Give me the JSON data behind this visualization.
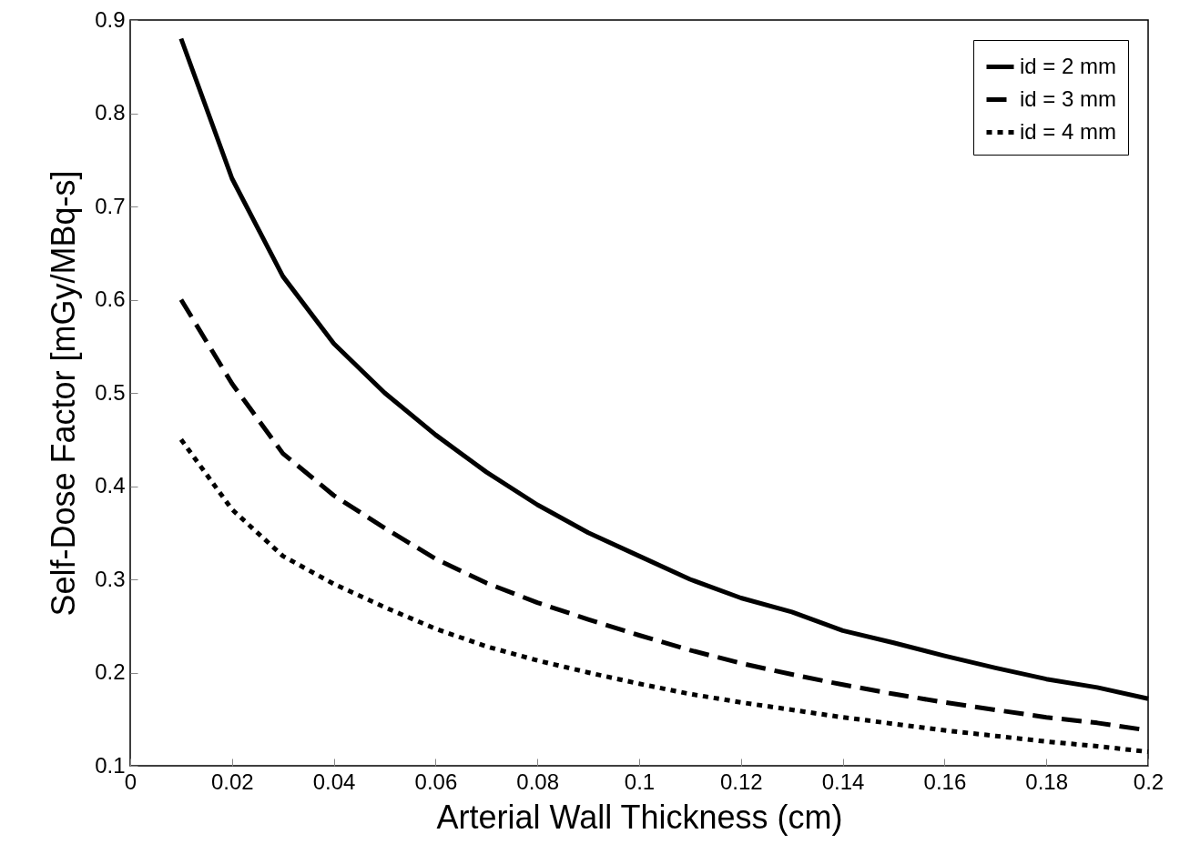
{
  "chart_data": {
    "type": "line",
    "xlabel": "Arterial Wall Thickness (cm)",
    "ylabel": "Self-Dose Factor [mGy/MBq-s]",
    "x": [
      0.01,
      0.02,
      0.03,
      0.04,
      0.05,
      0.06,
      0.07,
      0.08,
      0.09,
      0.1,
      0.11,
      0.12,
      0.13,
      0.14,
      0.15,
      0.16,
      0.17,
      0.18,
      0.19,
      0.2
    ],
    "series": [
      {
        "name": "id = 2 mm",
        "color": "#000000",
        "line_style": "solid",
        "values": [
          0.88,
          0.73,
          0.625,
          0.553,
          0.5,
          0.455,
          0.415,
          0.38,
          0.35,
          0.325,
          0.3,
          0.28,
          0.265,
          0.245,
          0.232,
          0.218,
          0.205,
          0.193,
          0.184,
          0.172
        ]
      },
      {
        "name": "id = 3 mm",
        "color": "#000000",
        "line_style": "dashed",
        "values": [
          0.6,
          0.51,
          0.435,
          0.39,
          0.355,
          0.322,
          0.296,
          0.275,
          0.257,
          0.24,
          0.224,
          0.21,
          0.198,
          0.187,
          0.177,
          0.168,
          0.16,
          0.152,
          0.146,
          0.138
        ]
      },
      {
        "name": "id = 4 mm",
        "color": "#000000",
        "line_style": "dotted",
        "values": [
          0.45,
          0.375,
          0.325,
          0.295,
          0.27,
          0.247,
          0.228,
          0.213,
          0.2,
          0.188,
          0.177,
          0.168,
          0.16,
          0.152,
          0.145,
          0.138,
          0.132,
          0.126,
          0.121,
          0.115
        ]
      }
    ],
    "xlim": [
      0,
      0.2
    ],
    "xticks": [
      0,
      0.02,
      0.04,
      0.06,
      0.08,
      0.1,
      0.12,
      0.14,
      0.16,
      0.18,
      0.2
    ],
    "ylim": [
      0.1,
      0.9
    ],
    "yticks": [
      0.1,
      0.2,
      0.3,
      0.4,
      0.5,
      0.6,
      0.7,
      0.8,
      0.9
    ],
    "grid": false,
    "legend": "top right",
    "marker": "none"
  }
}
